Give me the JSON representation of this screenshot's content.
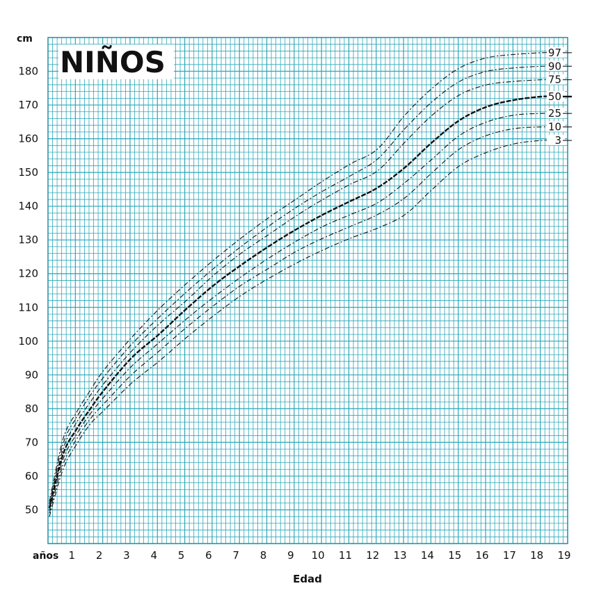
{
  "chart_data": {
    "type": "line",
    "title": "NIÑOS",
    "xlabel": "Edad",
    "ylabel": "cm",
    "x_unit_label": "años",
    "xlim": [
      0,
      19
    ],
    "ylim": [
      40,
      190
    ],
    "x_ticks": [
      1,
      2,
      3,
      4,
      5,
      6,
      7,
      8,
      9,
      10,
      11,
      12,
      13,
      14,
      15,
      16,
      17,
      18,
      19
    ],
    "y_ticks": [
      50,
      60,
      70,
      80,
      90,
      100,
      110,
      120,
      130,
      140,
      150,
      160,
      170,
      180
    ],
    "grid": true,
    "grid_color": "#2aa6b8",
    "line_color": "#111111",
    "x": [
      0,
      0.5,
      1,
      1.5,
      2,
      3,
      4,
      5,
      6,
      7,
      8,
      9,
      10,
      11,
      12,
      13,
      14,
      15,
      16,
      17,
      18,
      18.5
    ],
    "series": [
      {
        "name": "97",
        "values": [
          52.5,
          71,
          79,
          85.5,
          91.5,
          101,
          109.5,
          117,
          124,
          130.5,
          136.5,
          142,
          147.5,
          152.5,
          157,
          167,
          175,
          181,
          184,
          185,
          185.5,
          185.5
        ]
      },
      {
        "name": "90",
        "values": [
          51.8,
          69.5,
          77.5,
          84,
          89.5,
          99,
          107,
          114.5,
          121.5,
          128,
          134,
          139.5,
          144.5,
          149,
          154,
          163,
          171,
          177,
          180,
          181,
          181.5,
          181.5
        ]
      },
      {
        "name": "75",
        "values": [
          51,
          68,
          76,
          82,
          87.5,
          97,
          105,
          112,
          119.5,
          126,
          131.5,
          137,
          142,
          146.5,
          150.5,
          159,
          167,
          173,
          176,
          177,
          177.5,
          177.5
        ]
      },
      {
        "name": "50",
        "values": [
          50.5,
          66.5,
          74,
          80,
          85.5,
          95,
          102,
          109.5,
          116.5,
          122.5,
          128,
          133,
          137.5,
          141.5,
          145.5,
          151.5,
          159,
          165.5,
          169.5,
          171.5,
          172.5,
          172.5
        ]
      },
      {
        "name": "25",
        "values": [
          49.8,
          65,
          72.5,
          78.5,
          83.5,
          92.5,
          99.5,
          106.5,
          113,
          119,
          124.5,
          129.5,
          134,
          137.5,
          141,
          147,
          154,
          161,
          165,
          167,
          167.5,
          167.5
        ]
      },
      {
        "name": "10",
        "values": [
          49,
          63.5,
          71,
          77,
          81.5,
          90,
          97,
          104,
          110.5,
          116.5,
          121.5,
          126.5,
          130.5,
          134,
          137.5,
          142.5,
          150,
          157,
          161,
          163,
          163.5,
          163.5
        ]
      },
      {
        "name": "3",
        "values": [
          48,
          62,
          69.5,
          75.5,
          79.5,
          87.5,
          94,
          101,
          107.5,
          113.5,
          118.5,
          123,
          127,
          130.5,
          133.5,
          137.5,
          145,
          152,
          156,
          158.5,
          159.5,
          159.5
        ]
      }
    ]
  }
}
